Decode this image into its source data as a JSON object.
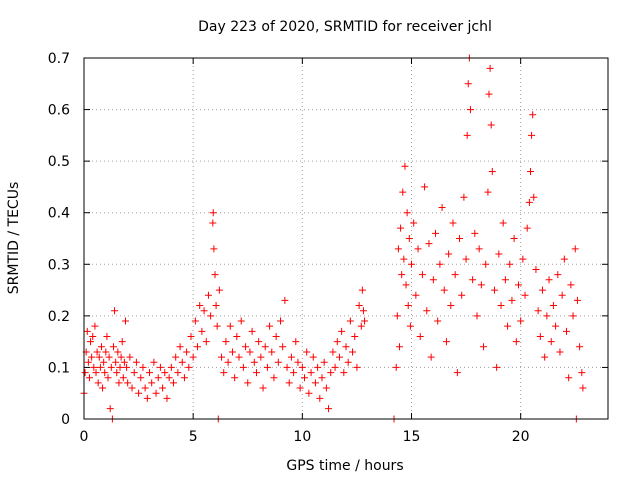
{
  "chart_data": {
    "type": "scatter",
    "title": "Day 223 of 2020, SRMTID for receiver jchl",
    "xlabel": "GPS time / hours",
    "ylabel": "SRMTID / TECUs",
    "xlim": [
      0,
      24
    ],
    "ylim": [
      0,
      0.7
    ],
    "xticks": [
      0,
      5,
      10,
      15,
      20
    ],
    "yticks": [
      0,
      0.1,
      0.2,
      0.3,
      0.4,
      0.5,
      0.6,
      0.7
    ],
    "xtick_labels": [
      "0",
      "5",
      "10",
      "15",
      "20"
    ],
    "ytick_labels": [
      "0",
      "0.1",
      "0.2",
      "0.3",
      "0.4",
      "0.5",
      "0.6",
      "0.7"
    ],
    "grid": true,
    "marker": "+",
    "color": "#ff0000",
    "series": [
      {
        "name": "SRMTID",
        "points": [
          [
            0.0,
            0.05
          ],
          [
            0.05,
            0.09
          ],
          [
            0.1,
            0.13
          ],
          [
            0.15,
            0.17
          ],
          [
            0.2,
            0.11
          ],
          [
            0.25,
            0.08
          ],
          [
            0.3,
            0.15
          ],
          [
            0.35,
            0.12
          ],
          [
            0.4,
            0.16
          ],
          [
            0.45,
            0.1
          ],
          [
            0.5,
            0.18
          ],
          [
            0.55,
            0.09
          ],
          [
            0.6,
            0.13
          ],
          [
            0.65,
            0.07
          ],
          [
            0.7,
            0.12
          ],
          [
            0.75,
            0.1
          ],
          [
            0.8,
            0.14
          ],
          [
            0.85,
            0.06
          ],
          [
            0.9,
            0.11
          ],
          [
            0.95,
            0.09
          ],
          [
            1.0,
            0.13
          ],
          [
            1.05,
            0.16
          ],
          [
            1.1,
            0.08
          ],
          [
            1.15,
            0.12
          ],
          [
            1.2,
            0.02
          ],
          [
            1.25,
            0.1
          ],
          [
            1.3,
            0.0
          ],
          [
            1.35,
            0.14
          ],
          [
            1.4,
            0.21
          ],
          [
            1.45,
            0.11
          ],
          [
            1.5,
            0.09
          ],
          [
            1.55,
            0.13
          ],
          [
            1.6,
            0.07
          ],
          [
            1.65,
            0.1
          ],
          [
            1.7,
            0.12
          ],
          [
            1.75,
            0.15
          ],
          [
            1.8,
            0.08
          ],
          [
            1.85,
            0.11
          ],
          [
            1.9,
            0.19
          ],
          [
            1.95,
            0.1
          ],
          [
            2.0,
            0.07
          ],
          [
            2.1,
            0.12
          ],
          [
            2.2,
            0.06
          ],
          [
            2.3,
            0.09
          ],
          [
            2.4,
            0.11
          ],
          [
            2.5,
            0.05
          ],
          [
            2.6,
            0.08
          ],
          [
            2.7,
            0.1
          ],
          [
            2.8,
            0.06
          ],
          [
            2.9,
            0.04
          ],
          [
            3.0,
            0.09
          ],
          [
            3.1,
            0.07
          ],
          [
            3.2,
            0.11
          ],
          [
            3.3,
            0.05
          ],
          [
            3.4,
            0.08
          ],
          [
            3.5,
            0.1
          ],
          [
            3.6,
            0.06
          ],
          [
            3.7,
            0.09
          ],
          [
            3.8,
            0.04
          ],
          [
            3.9,
            0.08
          ],
          [
            4.0,
            0.1
          ],
          [
            4.1,
            0.07
          ],
          [
            4.2,
            0.12
          ],
          [
            4.3,
            0.09
          ],
          [
            4.4,
            0.14
          ],
          [
            4.5,
            0.11
          ],
          [
            4.6,
            0.08
          ],
          [
            4.7,
            0.13
          ],
          [
            4.8,
            0.1
          ],
          [
            4.9,
            0.16
          ],
          [
            5.0,
            0.12
          ],
          [
            5.1,
            0.19
          ],
          [
            5.2,
            0.14
          ],
          [
            5.3,
            0.22
          ],
          [
            5.4,
            0.17
          ],
          [
            5.5,
            0.21
          ],
          [
            5.6,
            0.15
          ],
          [
            5.7,
            0.24
          ],
          [
            5.8,
            0.2
          ],
          [
            5.9,
            0.38
          ],
          [
            5.92,
            0.4
          ],
          [
            5.95,
            0.33
          ],
          [
            6.0,
            0.28
          ],
          [
            6.05,
            0.22
          ],
          [
            6.1,
            0.18
          ],
          [
            6.15,
            0.0
          ],
          [
            6.2,
            0.25
          ],
          [
            6.3,
            0.12
          ],
          [
            6.4,
            0.09
          ],
          [
            6.5,
            0.15
          ],
          [
            6.6,
            0.11
          ],
          [
            6.7,
            0.18
          ],
          [
            6.8,
            0.13
          ],
          [
            6.9,
            0.08
          ],
          [
            7.0,
            0.16
          ],
          [
            7.1,
            0.12
          ],
          [
            7.2,
            0.19
          ],
          [
            7.3,
            0.1
          ],
          [
            7.4,
            0.14
          ],
          [
            7.5,
            0.07
          ],
          [
            7.6,
            0.13
          ],
          [
            7.7,
            0.17
          ],
          [
            7.8,
            0.11
          ],
          [
            7.9,
            0.09
          ],
          [
            8.0,
            0.15
          ],
          [
            8.1,
            0.12
          ],
          [
            8.2,
            0.06
          ],
          [
            8.3,
            0.14
          ],
          [
            8.4,
            0.1
          ],
          [
            8.5,
            0.18
          ],
          [
            8.6,
            0.13
          ],
          [
            8.7,
            0.08
          ],
          [
            8.8,
            0.16
          ],
          [
            8.9,
            0.11
          ],
          [
            9.0,
            0.19
          ],
          [
            9.1,
            0.14
          ],
          [
            9.2,
            0.23
          ],
          [
            9.3,
            0.1
          ],
          [
            9.4,
            0.07
          ],
          [
            9.5,
            0.12
          ],
          [
            9.6,
            0.09
          ],
          [
            9.7,
            0.15
          ],
          [
            9.8,
            0.11
          ],
          [
            9.9,
            0.06
          ],
          [
            10.0,
            0.1
          ],
          [
            10.1,
            0.08
          ],
          [
            10.2,
            0.13
          ],
          [
            10.3,
            0.05
          ],
          [
            10.4,
            0.09
          ],
          [
            10.5,
            0.12
          ],
          [
            10.6,
            0.07
          ],
          [
            10.7,
            0.1
          ],
          [
            10.8,
            0.04
          ],
          [
            10.9,
            0.08
          ],
          [
            11.0,
            0.11
          ],
          [
            11.1,
            0.06
          ],
          [
            11.2,
            0.02
          ],
          [
            11.3,
            0.09
          ],
          [
            11.4,
            0.13
          ],
          [
            11.5,
            0.1
          ],
          [
            11.6,
            0.15
          ],
          [
            11.7,
            0.12
          ],
          [
            11.8,
            0.17
          ],
          [
            11.9,
            0.09
          ],
          [
            12.0,
            0.14
          ],
          [
            12.1,
            0.11
          ],
          [
            12.2,
            0.19
          ],
          [
            12.3,
            0.13
          ],
          [
            12.4,
            0.16
          ],
          [
            12.5,
            0.1
          ],
          [
            12.6,
            0.22
          ],
          [
            12.7,
            0.18
          ],
          [
            12.75,
            0.25
          ],
          [
            12.8,
            0.21
          ],
          [
            12.85,
            0.19
          ],
          [
            14.2,
            0.0
          ],
          [
            14.3,
            0.1
          ],
          [
            14.35,
            0.2
          ],
          [
            14.4,
            0.33
          ],
          [
            14.45,
            0.14
          ],
          [
            14.5,
            0.37
          ],
          [
            14.55,
            0.28
          ],
          [
            14.6,
            0.44
          ],
          [
            14.65,
            0.31
          ],
          [
            14.7,
            0.49
          ],
          [
            14.75,
            0.26
          ],
          [
            14.8,
            0.4
          ],
          [
            14.85,
            0.22
          ],
          [
            14.9,
            0.35
          ],
          [
            14.95,
            0.18
          ],
          [
            15.0,
            0.3
          ],
          [
            15.1,
            0.38
          ],
          [
            15.2,
            0.24
          ],
          [
            15.3,
            0.33
          ],
          [
            15.4,
            0.16
          ],
          [
            15.5,
            0.28
          ],
          [
            15.6,
            0.45
          ],
          [
            15.7,
            0.21
          ],
          [
            15.8,
            0.34
          ],
          [
            15.9,
            0.12
          ],
          [
            16.0,
            0.27
          ],
          [
            16.1,
            0.36
          ],
          [
            16.2,
            0.19
          ],
          [
            16.3,
            0.3
          ],
          [
            16.4,
            0.41
          ],
          [
            16.5,
            0.25
          ],
          [
            16.6,
            0.15
          ],
          [
            16.7,
            0.32
          ],
          [
            16.8,
            0.22
          ],
          [
            16.9,
            0.38
          ],
          [
            17.0,
            0.28
          ],
          [
            17.1,
            0.09
          ],
          [
            17.2,
            0.35
          ],
          [
            17.3,
            0.24
          ],
          [
            17.4,
            0.43
          ],
          [
            17.5,
            0.31
          ],
          [
            17.55,
            0.55
          ],
          [
            17.6,
            0.65
          ],
          [
            17.65,
            0.7
          ],
          [
            17.7,
            0.6
          ],
          [
            17.8,
            0.27
          ],
          [
            17.9,
            0.36
          ],
          [
            18.0,
            0.2
          ],
          [
            18.1,
            0.33
          ],
          [
            18.2,
            0.26
          ],
          [
            18.3,
            0.14
          ],
          [
            18.4,
            0.3
          ],
          [
            18.5,
            0.44
          ],
          [
            18.55,
            0.63
          ],
          [
            18.6,
            0.68
          ],
          [
            18.65,
            0.57
          ],
          [
            18.7,
            0.48
          ],
          [
            18.8,
            0.25
          ],
          [
            18.9,
            0.1
          ],
          [
            19.0,
            0.32
          ],
          [
            19.1,
            0.22
          ],
          [
            19.2,
            0.38
          ],
          [
            19.3,
            0.27
          ],
          [
            19.4,
            0.18
          ],
          [
            19.5,
            0.3
          ],
          [
            19.6,
            0.23
          ],
          [
            19.7,
            0.35
          ],
          [
            19.8,
            0.15
          ],
          [
            19.9,
            0.26
          ],
          [
            20.0,
            0.19
          ],
          [
            20.1,
            0.31
          ],
          [
            20.2,
            0.24
          ],
          [
            20.3,
            0.37
          ],
          [
            20.4,
            0.42
          ],
          [
            20.45,
            0.48
          ],
          [
            20.5,
            0.55
          ],
          [
            20.55,
            0.59
          ],
          [
            20.6,
            0.43
          ],
          [
            20.7,
            0.29
          ],
          [
            20.8,
            0.21
          ],
          [
            20.9,
            0.16
          ],
          [
            21.0,
            0.25
          ],
          [
            21.1,
            0.12
          ],
          [
            21.2,
            0.2
          ],
          [
            21.3,
            0.27
          ],
          [
            21.4,
            0.15
          ],
          [
            21.5,
            0.22
          ],
          [
            21.6,
            0.18
          ],
          [
            21.7,
            0.28
          ],
          [
            21.8,
            0.13
          ],
          [
            21.9,
            0.24
          ],
          [
            22.0,
            0.31
          ],
          [
            22.1,
            0.17
          ],
          [
            22.2,
            0.08
          ],
          [
            22.3,
            0.26
          ],
          [
            22.4,
            0.2
          ],
          [
            22.5,
            0.33
          ],
          [
            22.55,
            0.0
          ],
          [
            22.6,
            0.23
          ],
          [
            22.7,
            0.14
          ],
          [
            22.8,
            0.09
          ],
          [
            22.85,
            0.06
          ]
        ]
      }
    ]
  }
}
